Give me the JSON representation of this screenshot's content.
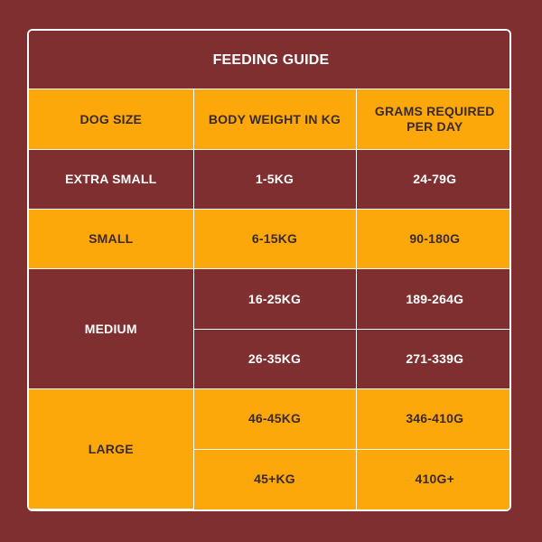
{
  "table": {
    "title": "FEEDING GUIDE",
    "headers": [
      "DOG SIZE",
      "BODY WEIGHT IN KG",
      "GRAMS REQUIRED PER DAY"
    ],
    "groups": [
      {
        "size": "EXTRA SMALL",
        "rows": [
          {
            "weight": "1-5KG",
            "grams": "24-79G"
          }
        ]
      },
      {
        "size": "SMALL",
        "rows": [
          {
            "weight": "6-15KG",
            "grams": "90-180G"
          }
        ]
      },
      {
        "size": "MEDIUM",
        "rows": [
          {
            "weight": "16-25KG",
            "grams": "189-264G"
          },
          {
            "weight": "26-35KG",
            "grams": "271-339G"
          }
        ]
      },
      {
        "size": "LARGE",
        "rows": [
          {
            "weight": "46-45KG",
            "grams": "346-410G"
          },
          {
            "weight": "45+KG",
            "grams": "410G+"
          }
        ]
      }
    ]
  },
  "colors": {
    "background": "#7f2f2f",
    "accent": "#fda80a",
    "border": "#ffffff"
  }
}
